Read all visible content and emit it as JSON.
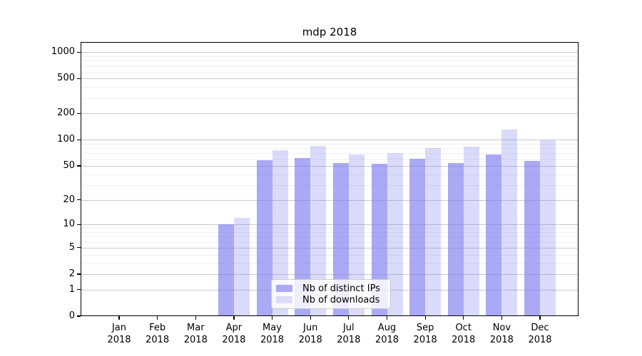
{
  "title": "mdp 2018",
  "chart_data": {
    "type": "bar",
    "title": "mdp 2018",
    "categories": [
      "Jan 2018",
      "Feb 2018",
      "Mar 2018",
      "Apr 2018",
      "May 2018",
      "Jun 2018",
      "Jul 2018",
      "Aug 2018",
      "Sep 2018",
      "Oct 2018",
      "Nov 2018",
      "Dec 2018"
    ],
    "series": [
      {
        "name": "Nb of distinct IPs",
        "color": "#a9a9f4",
        "rgba": "rgba(120,120,240,0.64)",
        "values": [
          0,
          0,
          0,
          10,
          58,
          62,
          54,
          53,
          60,
          54,
          68,
          57
        ]
      },
      {
        "name": "Nb of downloads",
        "color": "#dcdcfa",
        "rgba": "rgba(120,120,240,0.27)",
        "values": [
          0,
          0,
          0,
          12,
          76,
          85,
          68,
          70,
          80,
          84,
          130,
          98
        ]
      }
    ],
    "xlabel": "",
    "ylabel": "",
    "yscale": "log1p",
    "yticks": [
      0,
      1,
      2,
      5,
      10,
      20,
      50,
      100,
      200,
      500,
      1000
    ],
    "yminor": [
      3,
      4,
      6,
      7,
      8,
      9,
      30,
      40,
      60,
      70,
      80,
      90,
      300,
      400,
      600,
      700,
      800,
      900
    ],
    "ylim": [
      0,
      1300
    ],
    "grid": true,
    "legend_position": "lower center"
  },
  "colors": {
    "background": "#ffffff",
    "axis": "#000000",
    "grid_major": "#c9c9c9",
    "grid_minor": "#efefef",
    "text": "#000000",
    "legend_bg": "rgba(255,255,255,0.8)",
    "legend_border": "#cccccc"
  }
}
